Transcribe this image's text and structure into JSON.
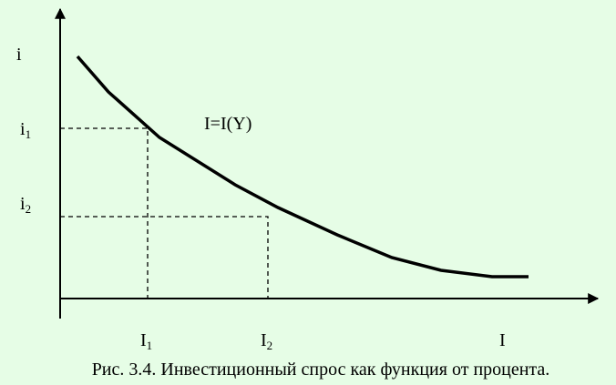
{
  "y_axis_label": "i",
  "x_axis_label": "I",
  "curve_label": "I=I(Y)",
  "levels": [
    {
      "rate": {
        "base": "i",
        "sub": "1"
      },
      "investment": {
        "base": "I",
        "sub": "1"
      }
    },
    {
      "rate": {
        "base": "i",
        "sub": "2"
      },
      "investment": {
        "base": "I",
        "sub": "2"
      }
    }
  ],
  "caption": "Рис. 3.4. Инвестиционный спрос как функция от процента."
}
